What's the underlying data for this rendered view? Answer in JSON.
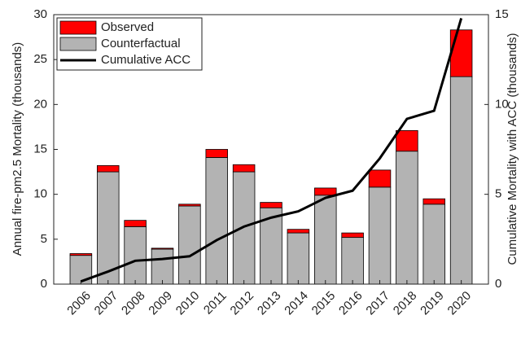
{
  "chart_data": {
    "type": "bar",
    "categories": [
      "2006",
      "2007",
      "2008",
      "2009",
      "2010",
      "2011",
      "2012",
      "2013",
      "2014",
      "2015",
      "2016",
      "2017",
      "2018",
      "2019",
      "2020"
    ],
    "ylabel": "Annual fire-pm2.5 Mortality (thousands)",
    "y2label": "Cumulative Mortality with ACC (thousands)",
    "ylim": [
      0,
      30
    ],
    "yticks": [
      0,
      5,
      10,
      15,
      20,
      25,
      30
    ],
    "y2lim": [
      0,
      15
    ],
    "y2ticks": [
      0,
      5,
      10,
      15
    ],
    "legend": "upper left",
    "series": [
      {
        "name": "Observed",
        "type": "bar",
        "color": "#ff0000",
        "values": [
          0.2,
          0.7,
          0.7,
          0.1,
          0.2,
          0.9,
          0.8,
          0.6,
          0.4,
          0.8,
          0.5,
          1.9,
          2.3,
          0.6,
          5.2
        ]
      },
      {
        "name": "Counterfactual",
        "type": "bar",
        "color": "#b3b3b3",
        "values": [
          3.2,
          12.5,
          6.4,
          3.9,
          8.7,
          14.1,
          12.5,
          8.5,
          5.7,
          9.9,
          5.2,
          10.8,
          14.8,
          8.9,
          23.1
        ]
      },
      {
        "name": "Cumulative ACC",
        "type": "line",
        "axis": "y2",
        "color": "#000000",
        "values": [
          0.15,
          0.7,
          1.3,
          1.4,
          1.55,
          2.45,
          3.2,
          3.7,
          4.05,
          4.8,
          5.2,
          7.0,
          9.2,
          9.65,
          14.8
        ]
      }
    ]
  }
}
